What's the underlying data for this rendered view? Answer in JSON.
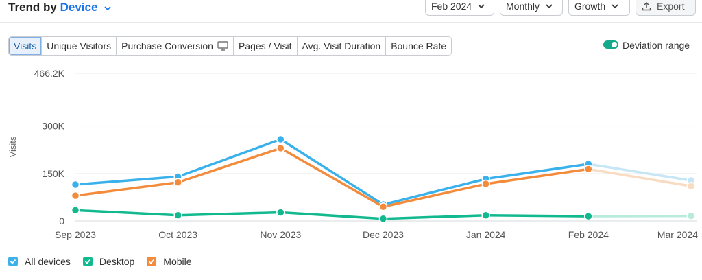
{
  "header": {
    "title_prefix": "Trend by",
    "title_link": "Device",
    "month_select": "Feb 2024",
    "period_select": "Monthly",
    "metric_select": "Growth",
    "export_label": "Export"
  },
  "tabs": [
    {
      "label": "Visits",
      "active": true
    },
    {
      "label": "Unique Visitors",
      "active": false
    },
    {
      "label": "Purchase Conversion",
      "active": false
    },
    {
      "label": "Pages / Visit",
      "active": false
    },
    {
      "label": "Avg. Visit Duration",
      "active": false
    },
    {
      "label": "Bounce Rate",
      "active": false
    }
  ],
  "deviation_toggle": {
    "label": "Deviation range",
    "on": true
  },
  "legend": [
    {
      "label": "All devices",
      "color": "#3ab1ea",
      "checked": true
    },
    {
      "label": "Desktop",
      "color": "#12b98f",
      "checked": true
    },
    {
      "label": "Mobile",
      "color": "#f28c3c",
      "checked": true
    }
  ],
  "chart_data": {
    "type": "line",
    "ylabel": "Visits",
    "xlabel": "",
    "x": [
      "Sep 2023",
      "Oct 2023",
      "Nov 2023",
      "Dec 2023",
      "Jan 2024",
      "Feb 2024",
      "Mar 2024"
    ],
    "y_ticks": [
      0,
      150000,
      300000,
      466200
    ],
    "y_tick_labels": [
      "0",
      "150K",
      "300K",
      "466.2K"
    ],
    "ylim": [
      0,
      466200
    ],
    "projected_from_index": 5,
    "series": [
      {
        "name": "All devices",
        "color": "#3ab1ea",
        "projected_color": "#c6e6f6",
        "values": [
          115000,
          140000,
          258000,
          52000,
          133000,
          180000,
          128000
        ]
      },
      {
        "name": "Mobile",
        "color": "#f28c3c",
        "projected_color": "#f9dbc2",
        "values": [
          80000,
          122000,
          230000,
          45000,
          117000,
          164000,
          110000
        ]
      },
      {
        "name": "Desktop",
        "color": "#12b98f",
        "projected_color": "#b9ebdc",
        "values": [
          34000,
          18000,
          27000,
          7000,
          18000,
          15000,
          16000
        ]
      }
    ],
    "grid": true,
    "legend_position": "bottom-left"
  }
}
